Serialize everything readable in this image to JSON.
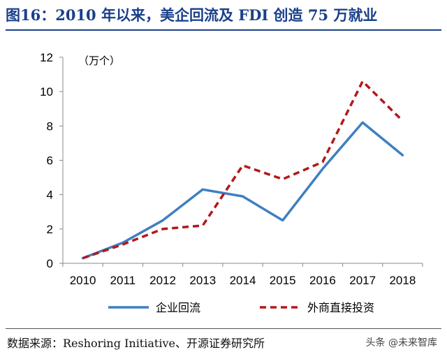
{
  "header": {
    "title": "图16：2010 年以来，美企回流及 FDI 创造 75 万就业"
  },
  "chart_data": {
    "type": "line",
    "unit_label": "（万个）",
    "x": [
      "2010",
      "2011",
      "2012",
      "2013",
      "2014",
      "2015",
      "2016",
      "2017",
      "2018"
    ],
    "ylim": [
      0,
      12
    ],
    "yticks": [
      0,
      2,
      4,
      6,
      8,
      10,
      12
    ],
    "grid": false,
    "legend_position": "bottom",
    "series": [
      {
        "name": "企业回流",
        "color": "#3f7fc1",
        "style": "solid",
        "values": [
          0.3,
          1.2,
          2.5,
          4.3,
          3.9,
          2.5,
          5.5,
          8.2,
          6.3
        ]
      },
      {
        "name": "外商直接投资",
        "color": "#b3181c",
        "style": "dashed",
        "values": [
          0.3,
          1.1,
          2.0,
          2.2,
          5.7,
          4.9,
          5.9,
          10.6,
          8.3
        ]
      }
    ]
  },
  "footer": {
    "source": "数据来源：Reshoring Initiative、开源证券研究所",
    "watermark": "头条 @未来智库"
  }
}
